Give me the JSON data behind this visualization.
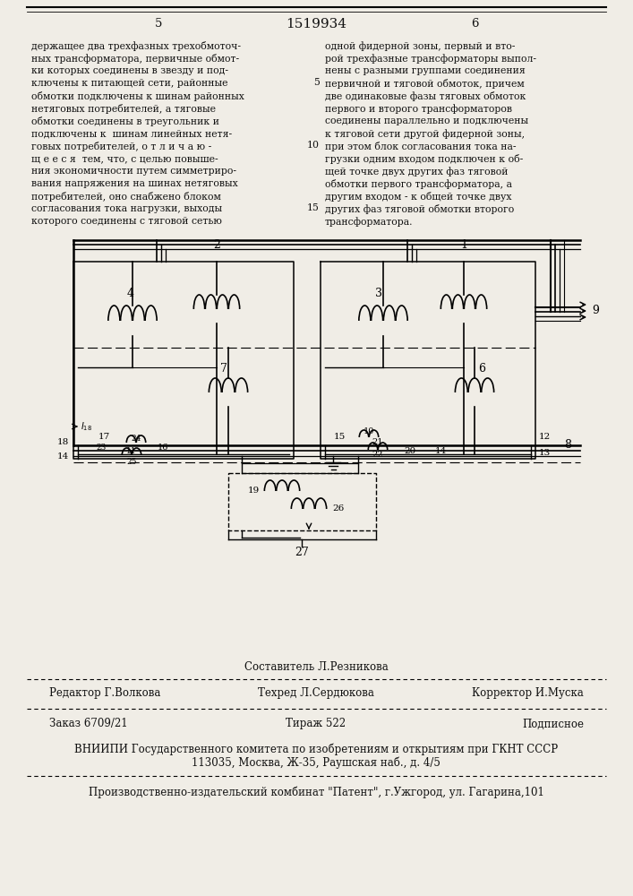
{
  "page_width": 7.07,
  "page_height": 10.0,
  "bg_color": "#f0ede6",
  "text_color": "#111111",
  "page_number_left": "5",
  "page_number_center": "1519934",
  "page_number_right": "6",
  "col_left_text": [
    "держащее два трехфазных трехобмоточ-",
    "ных трансформатора, первичные обмот-",
    "ки которых соединены в звезду и под-",
    "ключены к питающей сети, районные",
    "обмотки подключены к шинам районных",
    "нетяговых потребителей, а тяговые",
    "обмотки соединены в треугольник и",
    "подключены к  шинам линейных нетя-",
    "говых потребителей, о т л и ч а ю -",
    "щ е е с я  тем, что, с целью повыше-",
    "ния экономичности путем симметриро-",
    "вания напряжения на шинах нетяговых",
    "потребителей, оно снабжено блоком",
    "согласования тока нагрузки, выходы",
    "которого соединены с тяговой сетью"
  ],
  "col_right_text": [
    "одной фидерной зоны, первый и вто-",
    "рой трехфазные трансформаторы выпол-",
    "нены с разными группами соединения",
    "первичной и тяговой обмоток, причем",
    "две одинаковые фазы тяговых обмоток",
    "первого и второго трансформаторов",
    "соединены параллельно и подключены",
    "к тяговой сети другой фидерной зоны,",
    "при этом блок согласования тока на-",
    "грузки одним входом подключен к об-",
    "щей точке двух других фаз тяговой",
    "обмотки первого трансформатора, а",
    "другим входом - к общей точке двух",
    "других фаз тяговой обмотки второго",
    "трансформатора."
  ],
  "footer_line1_center": "Составитель Л.Резникова",
  "footer_line2_left": "Редактор Г.Волкова",
  "footer_line2_center": "Техред Л.Сердюкова",
  "footer_line2_right": "Корректор И.Муска",
  "footer_line3_left": "Заказ 6709/21",
  "footer_line3_center": "Тираж 522",
  "footer_line3_right": "Подписное",
  "footer_line4": "ВНИИПИ Государственного комитета по изобретениям и открытиям при ГКНТ СССР",
  "footer_line5": "113035, Москва, Ж-35, Раушская наб., д. 4/5",
  "footer_line6": "Производственно-издательский комбинат \"Патент\", г.Ужгород, ул. Гагарина,101"
}
